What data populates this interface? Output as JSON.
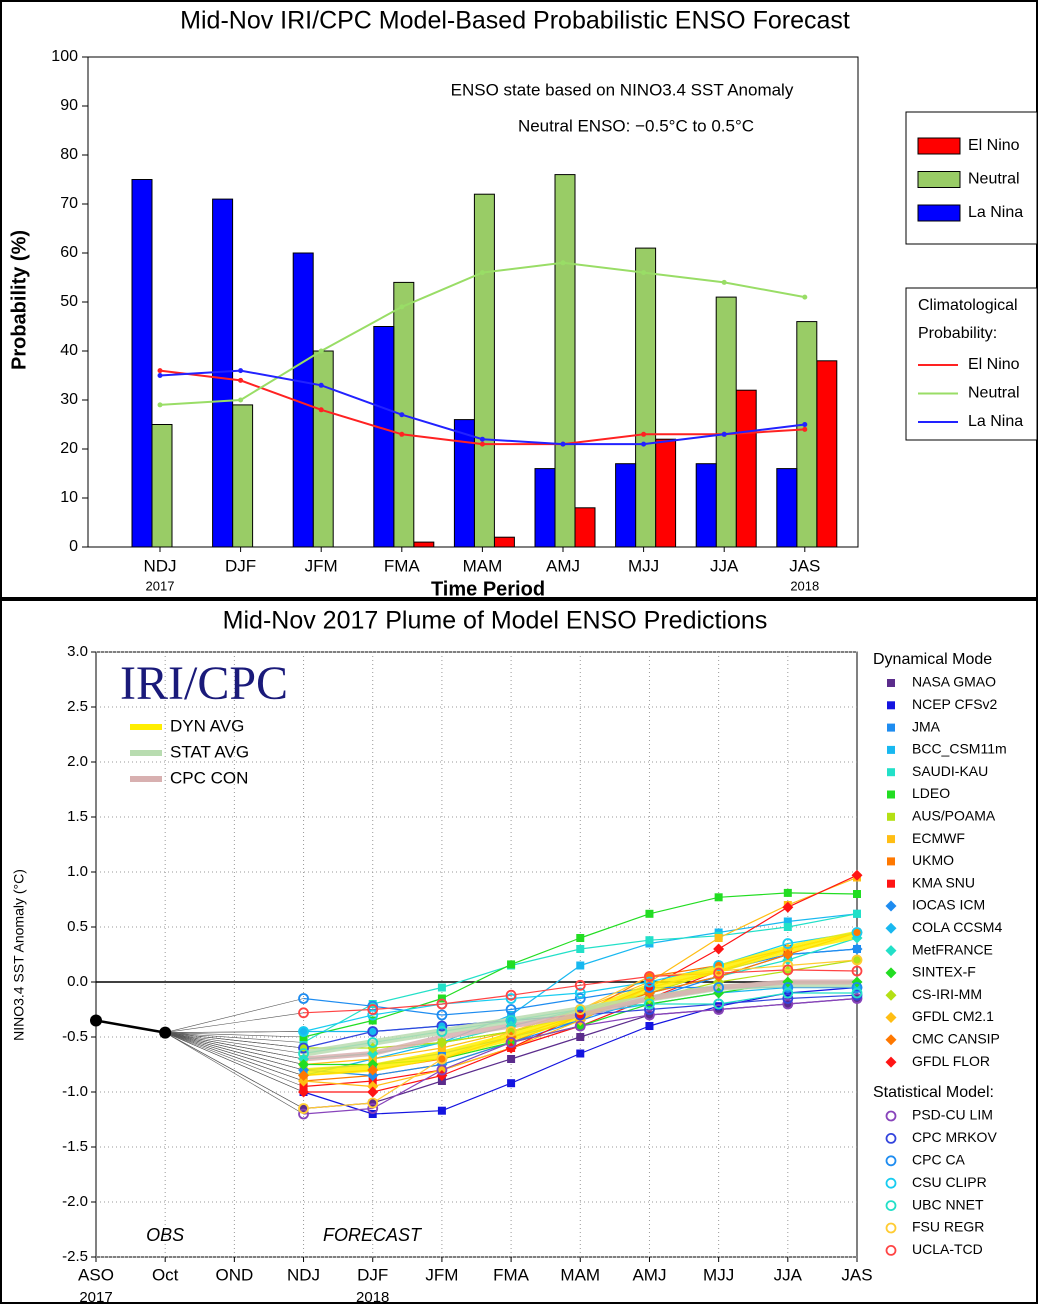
{
  "chart_data": [
    {
      "type": "bar",
      "title": "Mid-Nov IRI/CPC Model-Based Probabilistic ENSO Forecast",
      "x_label": "Time Period",
      "y_label": "Probability (%)",
      "annotations": [
        "ENSO state based on NINO3.4 SST Anomaly",
        "Neutral ENSO: −0.5°C to 0.5°C"
      ],
      "categories": [
        "NDJ",
        "DJF",
        "JFM",
        "FMA",
        "MAM",
        "AMJ",
        "MJJ",
        "JJA",
        "JAS"
      ],
      "category_years": [
        "2017",
        null,
        null,
        null,
        null,
        null,
        null,
        null,
        "2018"
      ],
      "ylim": [
        0,
        100
      ],
      "yticks": [
        0,
        10,
        20,
        30,
        40,
        50,
        60,
        70,
        80,
        90,
        100
      ],
      "series": [
        {
          "name": "El Nino",
          "color": "#ff0000",
          "values": [
            0,
            0,
            0,
            1,
            2,
            8,
            22,
            32,
            38
          ]
        },
        {
          "name": "Neutral",
          "color": "#99cc66",
          "values": [
            25,
            29,
            40,
            54,
            72,
            76,
            61,
            51,
            46
          ]
        },
        {
          "name": "La Nina",
          "color": "#0000ff",
          "values": [
            75,
            71,
            60,
            45,
            26,
            16,
            17,
            17,
            16
          ]
        }
      ],
      "climatology_title": "Climatological",
      "climatology_subtitle": "Probability:",
      "climatology": [
        {
          "name": "El Nino",
          "color": "#ff2222",
          "values": [
            36,
            34,
            28,
            23,
            21,
            21,
            23,
            23,
            24
          ]
        },
        {
          "name": "Neutral",
          "color": "#99dd66",
          "values": [
            29,
            30,
            40,
            49,
            56,
            58,
            56,
            54,
            51
          ]
        },
        {
          "name": "La Nina",
          "color": "#2222ff",
          "values": [
            35,
            36,
            33,
            27,
            22,
            21,
            21,
            23,
            25
          ]
        }
      ]
    },
    {
      "type": "line",
      "title": "Mid-Nov 2017 Plume of Model ENSO Predictions",
      "y_label": "NINO3.4 SST Anomaly (°C)",
      "logo": "IRI/CPC",
      "categories": [
        "ASO",
        "Oct",
        "OND",
        "NDJ",
        "DJF",
        "JFM",
        "FMA",
        "MAM",
        "AMJ",
        "MJJ",
        "JJA",
        "JAS"
      ],
      "category_years": [
        "2017",
        null,
        null,
        null,
        "2018",
        null,
        null,
        null,
        null,
        null,
        null,
        null
      ],
      "ylim": [
        -2.5,
        3.0
      ],
      "yticks": [
        {
          "value": 3,
          "label": "3.0"
        },
        2.5,
        {
          "value": 2,
          "label": "2.0"
        },
        1.5,
        {
          "value": 1,
          "label": "1.0"
        },
        0.5,
        {
          "value": 0,
          "label": "0.0"
        },
        -0.5,
        {
          "value": -1,
          "label": "-1.0"
        },
        -1.5,
        {
          "value": -2,
          "label": "-2.0"
        },
        -2.5
      ],
      "grid": true,
      "obs": {
        "label": "OBS",
        "color": "#000000",
        "values": [
          -0.35,
          -0.46,
          null,
          null,
          null,
          null,
          null,
          null,
          null,
          null,
          null,
          null
        ]
      },
      "forecast_label": "FORECAST",
      "averages": [
        {
          "name": "DYN AVG",
          "color": "#ffee00",
          "values": [
            null,
            null,
            null,
            -0.82,
            -0.78,
            -0.66,
            -0.5,
            -0.3,
            -0.05,
            0.12,
            0.3,
            0.43
          ]
        },
        {
          "name": "STAT AVG",
          "color": "#b8dcb0",
          "values": [
            null,
            null,
            null,
            -0.65,
            -0.55,
            -0.45,
            -0.35,
            -0.25,
            -0.15,
            -0.05,
            -0.02,
            -0.02
          ]
        },
        {
          "name": "CPC CON",
          "color": "#d8b0b0",
          "values": [
            null,
            null,
            null,
            -0.7,
            -0.65,
            -0.5,
            -0.4,
            -0.3,
            -0.15,
            -0.05,
            0,
            0
          ]
        }
      ],
      "dynamical_title": "Dynamical Mode",
      "dynamical": [
        {
          "name": "NASA GMAO",
          "color": "#5b2c8c",
          "marker": "square",
          "values": [
            null,
            null,
            null,
            -1.15,
            -1.1,
            -0.9,
            -0.7,
            -0.5,
            -0.3,
            -0.25,
            -0.2,
            -0.15
          ]
        },
        {
          "name": "NCEP CFSv2",
          "color": "#1414e0",
          "marker": "square",
          "values": [
            null,
            null,
            null,
            -1.0,
            -1.2,
            -1.17,
            -0.92,
            -0.65,
            -0.4,
            -0.22,
            -0.1,
            -0.05
          ]
        },
        {
          "name": "JMA",
          "color": "#1e8cf0",
          "marker": "square",
          "values": [
            null,
            null,
            null,
            -0.8,
            -0.75,
            -0.65,
            -0.5,
            -0.35,
            -0.05,
            0.1,
            0.25,
            0.3
          ]
        },
        {
          "name": "BCC_CSM11m",
          "color": "#18b8f0",
          "marker": "square",
          "values": [
            null,
            null,
            null,
            -0.85,
            -0.7,
            -0.55,
            -0.3,
            0.15,
            0.35,
            0.45,
            0.55,
            0.62
          ]
        },
        {
          "name": "SAUDI-KAU",
          "color": "#22e0c8",
          "marker": "square",
          "values": [
            null,
            null,
            null,
            -0.55,
            -0.2,
            -0.05,
            0.15,
            0.3,
            0.38,
            0.42,
            0.5,
            0.62
          ]
        },
        {
          "name": "LDEO",
          "color": "#22dd22",
          "marker": "square",
          "values": [
            null,
            null,
            null,
            -0.5,
            -0.35,
            -0.15,
            0.16,
            0.4,
            0.62,
            0.77,
            0.81,
            0.8
          ]
        },
        {
          "name": "AUS/POAMA",
          "color": "#b4e014",
          "marker": "square",
          "values": [
            null,
            null,
            null,
            -0.7,
            -0.65,
            -0.55,
            -0.45,
            -0.3,
            -0.1,
            0.1,
            0.3,
            0.45
          ]
        },
        {
          "name": "ECMWF",
          "color": "#ffbe14",
          "marker": "square",
          "values": [
            null,
            null,
            null,
            -0.75,
            -0.7,
            -0.6,
            -0.45,
            -0.25,
            0,
            0.4,
            0.7,
            0.95
          ]
        },
        {
          "name": "UKMO",
          "color": "#ff7800",
          "marker": "square",
          "values": [
            null,
            null,
            null,
            -0.9,
            -0.85,
            -0.75,
            -0.55,
            -0.3,
            0.05,
            0.15,
            0.3,
            0.45
          ]
        },
        {
          "name": "KMA SNU",
          "color": "#ff1414",
          "marker": "square",
          "values": [
            null,
            null,
            null,
            -0.95,
            -0.9,
            -0.8,
            -0.6,
            -0.4,
            -0.15,
            0.1,
            0.3,
            0.45
          ]
        },
        {
          "name": "IOCAS ICM",
          "color": "#1e8cf0",
          "marker": "diamond",
          "values": [
            null,
            null,
            null,
            -0.8,
            -0.85,
            -0.75,
            -0.55,
            -0.35,
            -0.15,
            0.05,
            0.25,
            0.3
          ]
        },
        {
          "name": "COLA CCSM4",
          "color": "#18b8f0",
          "marker": "diamond",
          "values": [
            null,
            null,
            null,
            -0.45,
            -0.45,
            -0.4,
            -0.35,
            -0.3,
            -0.2,
            -0.1,
            -0.05,
            -0.05
          ]
        },
        {
          "name": "MetFRANCE",
          "color": "#22e0c8",
          "marker": "diamond",
          "values": [
            null,
            null,
            null,
            -0.7,
            -0.65,
            -0.55,
            -0.4,
            -0.25,
            -0.1,
            0.05,
            0.2,
            0.4
          ]
        },
        {
          "name": "SINTEX-F",
          "color": "#22dd22",
          "marker": "diamond",
          "values": [
            null,
            null,
            null,
            -0.75,
            -0.75,
            -0.7,
            -0.55,
            -0.4,
            -0.2,
            -0.1,
            0,
            0
          ]
        },
        {
          "name": "CS-IRI-MM",
          "color": "#b4e014",
          "marker": "diamond",
          "values": [
            null,
            null,
            null,
            -0.6,
            -0.6,
            -0.55,
            -0.45,
            -0.3,
            -0.15,
            0,
            0.1,
            0.2
          ]
        },
        {
          "name": "GFDL CM2.1",
          "color": "#ffbe14",
          "marker": "diamond",
          "values": [
            null,
            null,
            null,
            -0.9,
            -0.95,
            -0.8,
            -0.6,
            -0.35,
            -0.05,
            0.1,
            0.3,
            0.45
          ]
        },
        {
          "name": "CMC CANSIP",
          "color": "#ff7800",
          "marker": "diamond",
          "values": [
            null,
            null,
            null,
            -0.85,
            -0.8,
            -0.7,
            -0.5,
            -0.3,
            -0.1,
            0.05,
            0.25,
            0.45
          ]
        },
        {
          "name": "GFDL FLOR",
          "color": "#ff1414",
          "marker": "diamond",
          "values": [
            null,
            null,
            null,
            -1.0,
            -1.0,
            -0.85,
            -0.6,
            -0.3,
            -0.05,
            0.3,
            0.68,
            0.97
          ]
        }
      ],
      "statistical_title": "Statistical Model:",
      "statistical": [
        {
          "name": "PSD-CU LIM",
          "color": "#8844bb",
          "marker": "circle",
          "values": [
            null,
            null,
            null,
            -1.2,
            -1.15,
            -0.8,
            -0.55,
            -0.4,
            -0.3,
            -0.25,
            -0.2,
            -0.15
          ]
        },
        {
          "name": "CPC MRKOV",
          "color": "#3344dd",
          "marker": "circle",
          "values": [
            null,
            null,
            null,
            -0.6,
            -0.45,
            -0.4,
            -0.35,
            -0.3,
            -0.25,
            -0.2,
            -0.15,
            -0.12
          ]
        },
        {
          "name": "CPC CA",
          "color": "#1e8cf0",
          "marker": "circle",
          "values": [
            null,
            null,
            null,
            -0.15,
            -0.22,
            -0.3,
            -0.25,
            -0.15,
            -0.05,
            -0.05,
            -0.05,
            -0.05
          ]
        },
        {
          "name": "CSU CLIPR",
          "color": "#18ccf0",
          "marker": "circle",
          "values": [
            null,
            null,
            null,
            -0.45,
            -0.3,
            -0.2,
            -0.15,
            -0.1,
            0,
            0.15,
            0.35,
            0.45
          ]
        },
        {
          "name": "UBC NNET",
          "color": "#22e0c8",
          "marker": "circle",
          "values": [
            null,
            null,
            null,
            -0.65,
            -0.55,
            -0.45,
            -0.35,
            -0.25,
            -0.2,
            -0.2,
            -0.1,
            -0.1
          ]
        },
        {
          "name": "FSU REGR",
          "color": "#ffcc33",
          "marker": "circle",
          "values": [
            null,
            null,
            null,
            -1.15,
            -1.1,
            -0.7,
            -0.45,
            -0.25,
            0.05,
            0.1,
            0.15,
            0.2
          ]
        },
        {
          "name": "UCLA-TCD",
          "color": "#ff4444",
          "marker": "circle",
          "values": [
            null,
            null,
            null,
            -0.28,
            -0.25,
            -0.2,
            -0.12,
            -0.03,
            0.05,
            0.08,
            0.11,
            0.1
          ]
        }
      ]
    }
  ]
}
